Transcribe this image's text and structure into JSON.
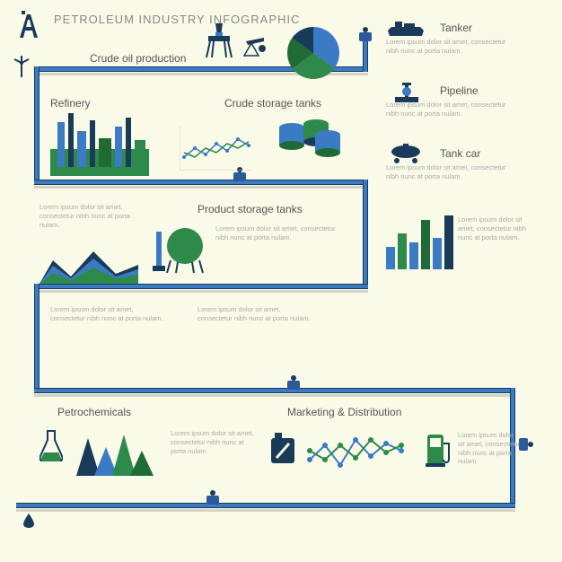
{
  "title": "PETROLEUM INDUSTRY INFOGRAPHIC",
  "colors": {
    "background": "#fafae8",
    "pipe": "#3b7bc4",
    "pipe_stroke": "#1a3a5a",
    "dark": "#1a3a5a",
    "blue": "#3b7bc4",
    "green": "#2d8a4a",
    "green_dark": "#1f6a35",
    "text_heading": "#888888",
    "text_label": "#555555",
    "text_lorem": "#aaaaaa"
  },
  "lorem": "Lorem ipsum dolor sit amet, consectetur nibh nunc at porta nulam.",
  "sections": {
    "crude_oil": {
      "label": "Crude oil production"
    },
    "refinery": {
      "label": "Refinery"
    },
    "crude_storage": {
      "label": "Crude storage tanks"
    },
    "product_storage": {
      "label": "Product storage tanks"
    },
    "petrochemicals": {
      "label": "Petrochemicals"
    },
    "marketing": {
      "label": "Marketing & Distribution"
    },
    "tanker": {
      "label": "Tanker"
    },
    "pipeline": {
      "label": "Pipeline"
    },
    "tankcar": {
      "label": "Tank car"
    }
  },
  "charts": {
    "pie": {
      "type": "pie",
      "slices": [
        {
          "value": 35,
          "color": "#3b7bc4"
        },
        {
          "value": 30,
          "color": "#2d8a4a"
        },
        {
          "value": 20,
          "color": "#1f6a35"
        },
        {
          "value": 15,
          "color": "#1a3a5a"
        }
      ]
    },
    "line1": {
      "type": "line",
      "points_a": [
        15,
        25,
        18,
        30,
        22,
        35,
        28
      ],
      "points_b": [
        20,
        15,
        25,
        20,
        30,
        25,
        32
      ],
      "color_a": "#3b7bc4",
      "color_b": "#2d8a4a",
      "marker": "circle",
      "marker_size": 3
    },
    "area1": {
      "type": "area",
      "layers": [
        {
          "color": "#1a3a5a",
          "heights": [
            10,
            35,
            15,
            40,
            20
          ]
        },
        {
          "color": "#3b7bc4",
          "heights": [
            8,
            28,
            12,
            32,
            16
          ]
        },
        {
          "color": "#2d8a4a",
          "heights": [
            5,
            20,
            8,
            25,
            12
          ]
        }
      ]
    },
    "bar1": {
      "type": "bar",
      "values": [
        25,
        40,
        30,
        55,
        35,
        60
      ],
      "colors": [
        "#3b7bc4",
        "#2d8a4a",
        "#3b7bc4",
        "#1f6a35",
        "#3b7bc4",
        "#1a3a5a"
      ],
      "ylim": [
        0,
        60
      ]
    },
    "peaks": {
      "type": "area",
      "peaks": [
        {
          "h": 45,
          "color": "#1a3a5a"
        },
        {
          "h": 35,
          "color": "#3b7bc4"
        },
        {
          "h": 50,
          "color": "#2d8a4a"
        },
        {
          "h": 30,
          "color": "#1f6a35"
        }
      ]
    },
    "line2": {
      "type": "line",
      "points_a": [
        20,
        35,
        15,
        40,
        25,
        38,
        30
      ],
      "points_b": [
        30,
        20,
        35,
        22,
        40,
        28,
        35
      ],
      "color_a": "#3b7bc4",
      "color_b": "#2d8a4a",
      "marker_size": 4
    }
  },
  "typography": {
    "title_fontsize": 13,
    "label_fontsize": 12,
    "lorem_fontsize": 7.5
  }
}
